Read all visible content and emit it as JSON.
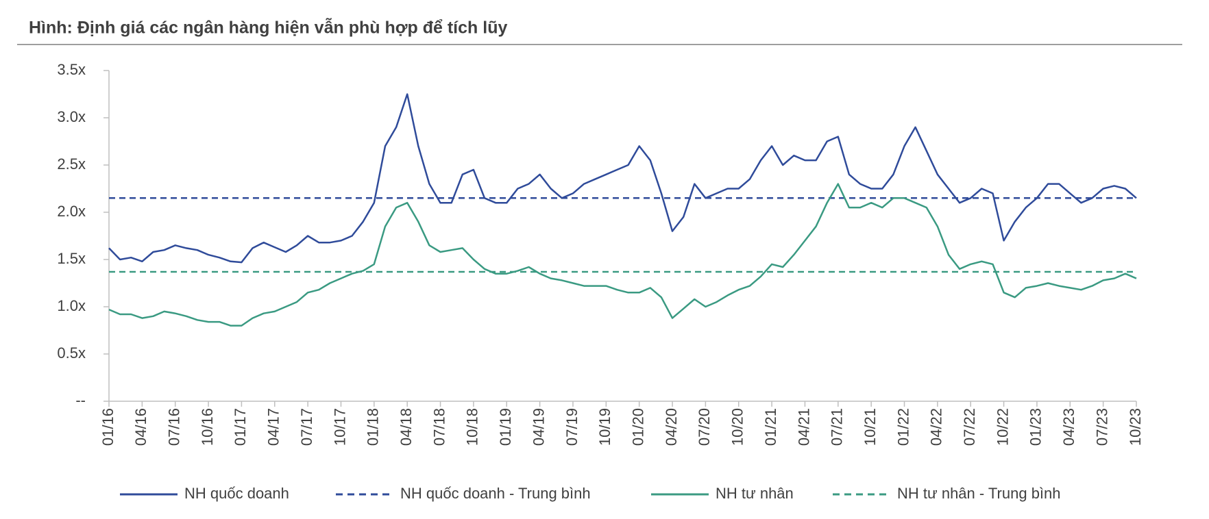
{
  "chart_data": {
    "type": "line",
    "title": "Hình: Định giá các ngân hàng hiện vẫn phù hợp để tích lũy",
    "categories": [
      "01/16",
      null,
      null,
      "04/16",
      null,
      null,
      "07/16",
      null,
      null,
      "10/16",
      null,
      null,
      "01/17",
      null,
      null,
      "04/17",
      null,
      null,
      "07/17",
      null,
      null,
      "10/17",
      null,
      null,
      "01/18",
      null,
      null,
      "04/18",
      null,
      null,
      "07/18",
      null,
      null,
      "10/18",
      null,
      null,
      "01/19",
      null,
      null,
      "04/19",
      null,
      null,
      "07/19",
      null,
      null,
      "10/19",
      null,
      null,
      "01/20",
      null,
      null,
      "04/20",
      null,
      null,
      "07/20",
      null,
      null,
      "10/20",
      null,
      null,
      "01/21",
      null,
      null,
      "04/21",
      null,
      null,
      "07/21",
      null,
      null,
      "10/21",
      null,
      null,
      "01/22",
      null,
      null,
      "04/22",
      null,
      null,
      "07/22",
      null,
      null,
      "10/22",
      null,
      null,
      "01/23",
      null,
      null,
      "04/23",
      null,
      null,
      "07/23",
      null,
      null,
      "10/23"
    ],
    "series": [
      {
        "name": "NH quốc doanh",
        "color": "#2f4b9a",
        "values": [
          1.62,
          1.5,
          1.52,
          1.48,
          1.58,
          1.6,
          1.65,
          1.62,
          1.6,
          1.55,
          1.52,
          1.48,
          1.47,
          1.62,
          1.68,
          1.63,
          1.58,
          1.65,
          1.75,
          1.68,
          1.68,
          1.7,
          1.75,
          1.9,
          2.1,
          2.7,
          2.9,
          3.25,
          2.7,
          2.3,
          2.1,
          2.1,
          2.4,
          2.45,
          2.15,
          2.1,
          2.1,
          2.25,
          2.3,
          2.4,
          2.25,
          2.15,
          2.2,
          2.3,
          2.35,
          2.4,
          2.45,
          2.5,
          2.7,
          2.55,
          2.2,
          1.8,
          1.95,
          2.3,
          2.15,
          2.2,
          2.25,
          2.25,
          2.35,
          2.55,
          2.7,
          2.5,
          2.6,
          2.55,
          2.55,
          2.75,
          2.8,
          2.4,
          2.3,
          2.25,
          2.25,
          2.4,
          2.7,
          2.9,
          2.65,
          2.4,
          2.25,
          2.1,
          2.15,
          2.25,
          2.2,
          1.7,
          1.9,
          2.05,
          2.15,
          2.3,
          2.3,
          2.2,
          2.1,
          2.15,
          2.25,
          2.28,
          2.25,
          2.15
        ]
      },
      {
        "name": "NH tư nhân",
        "color": "#3a9a82",
        "values": [
          0.97,
          0.92,
          0.92,
          0.88,
          0.9,
          0.95,
          0.93,
          0.9,
          0.86,
          0.84,
          0.84,
          0.8,
          0.8,
          0.88,
          0.93,
          0.95,
          1.0,
          1.05,
          1.15,
          1.18,
          1.25,
          1.3,
          1.35,
          1.38,
          1.45,
          1.85,
          2.05,
          2.1,
          1.9,
          1.65,
          1.58,
          1.6,
          1.62,
          1.5,
          1.4,
          1.35,
          1.35,
          1.38,
          1.42,
          1.35,
          1.3,
          1.28,
          1.25,
          1.22,
          1.22,
          1.22,
          1.18,
          1.15,
          1.15,
          1.2,
          1.1,
          0.88,
          0.98,
          1.08,
          1.0,
          1.05,
          1.12,
          1.18,
          1.22,
          1.32,
          1.45,
          1.42,
          1.55,
          1.7,
          1.85,
          2.1,
          2.3,
          2.05,
          2.05,
          2.1,
          2.05,
          2.15,
          2.15,
          2.1,
          2.05,
          1.85,
          1.55,
          1.4,
          1.45,
          1.48,
          1.45,
          1.15,
          1.1,
          1.2,
          1.22,
          1.25,
          1.22,
          1.2,
          1.18,
          1.22,
          1.28,
          1.3,
          1.35,
          1.3
        ]
      }
    ],
    "reference_lines": [
      {
        "name": "NH quốc doanh - Trung bình",
        "color": "#2f4b9a",
        "value": 2.15
      },
      {
        "name": "NH tư nhân - Trung bình",
        "color": "#3a9a82",
        "value": 1.37
      }
    ],
    "ylim": [
      0,
      3.5
    ],
    "yticks": [
      {
        "value": 0,
        "label": "--"
      },
      {
        "value": 0.5,
        "label": "0.5x"
      },
      {
        "value": 1,
        "label": "1.0x"
      },
      {
        "value": 1.5,
        "label": "1.5x"
      },
      {
        "value": 2,
        "label": "2.0x"
      },
      {
        "value": 2.5,
        "label": "2.5x"
      },
      {
        "value": 3,
        "label": "3.0x"
      },
      {
        "value": 3.5,
        "label": "3.5x"
      }
    ],
    "grid": false,
    "legend": "bottom"
  }
}
